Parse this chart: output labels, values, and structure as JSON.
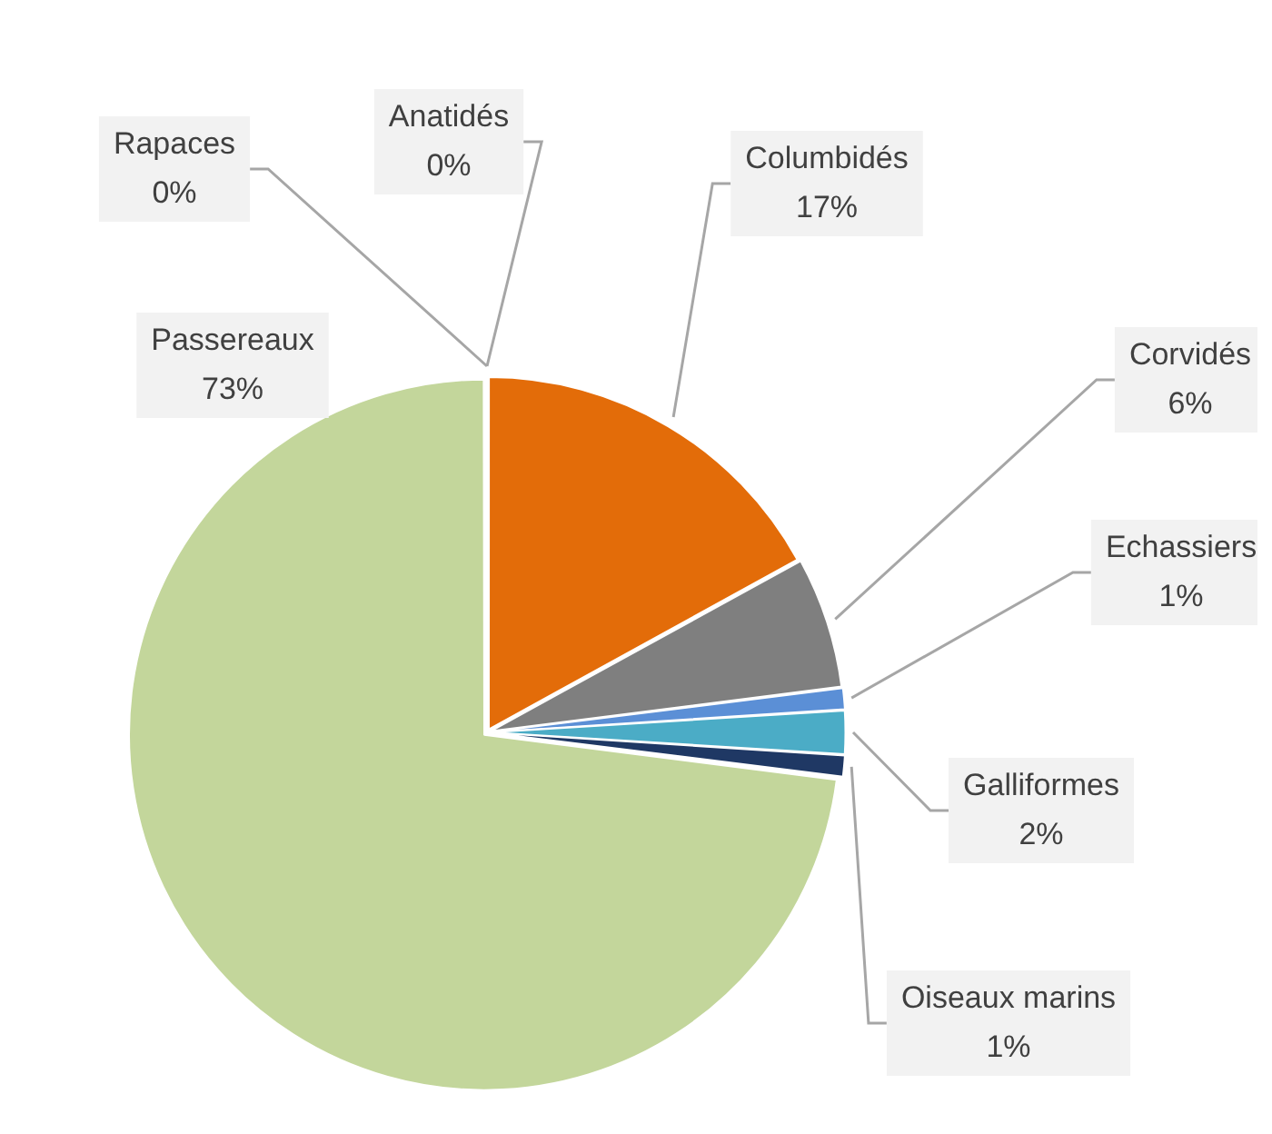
{
  "chart_data": {
    "type": "pie",
    "categories": [
      "Anatidés",
      "Columbidés",
      "Corvidés",
      "Echassiers",
      "Galliformes",
      "Oiseaux marins",
      "Passereaux",
      "Rapaces"
    ],
    "values": [
      0,
      17,
      6,
      1,
      2,
      1,
      73,
      0
    ],
    "colors": [
      "#9dc3e6",
      "#e36c09",
      "#7f7f7f",
      "#5b8fd6",
      "#4bacc6",
      "#1f3864",
      "#c3d69b",
      "#a9c4e0"
    ],
    "value_labels": [
      "0%",
      "17%",
      "6%",
      "1%",
      "2%",
      "1%",
      "73%",
      "0%"
    ],
    "legend": false
  }
}
